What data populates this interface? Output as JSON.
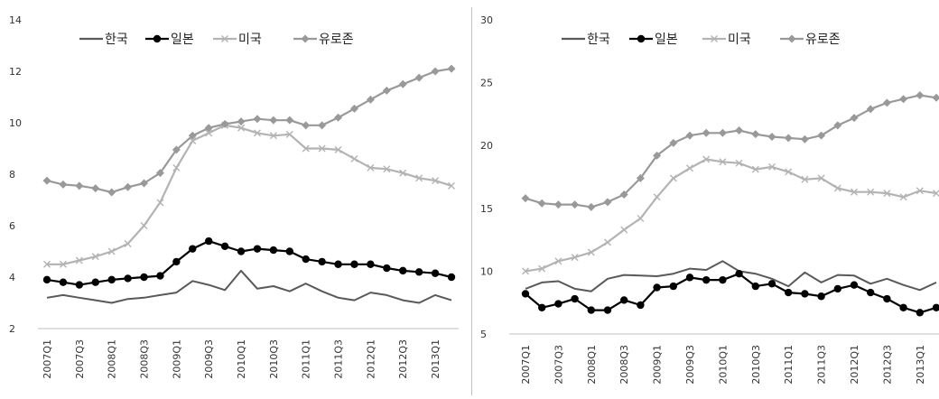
{
  "chart_data": [
    {
      "type": "line",
      "title": "",
      "xlabel": "",
      "ylabel": "",
      "ylim": [
        2,
        14
      ],
      "yticks": [
        2,
        4,
        6,
        8,
        10,
        12,
        14
      ],
      "grid": false,
      "legend_position": "top",
      "categories": [
        "2007Q1",
        "2007Q2",
        "2007Q3",
        "2007Q4",
        "2008Q1",
        "2008Q2",
        "2008Q3",
        "2008Q4",
        "2009Q1",
        "2009Q2",
        "2009Q3",
        "2009Q4",
        "2010Q1",
        "2010Q2",
        "2010Q3",
        "2010Q4",
        "2011Q1",
        "2011Q2",
        "2011Q3",
        "2011Q4",
        "2012Q1",
        "2012Q2",
        "2012Q3",
        "2012Q4",
        "2013Q1",
        "2013Q2"
      ],
      "xtick_labels": [
        "2007Q1",
        "",
        "2007Q3",
        "",
        "2008Q1",
        "",
        "2008Q3",
        "",
        "2009Q1",
        "",
        "2009Q3",
        "",
        "2010Q1",
        "",
        "2010Q3",
        "",
        "2011Q1",
        "",
        "2011Q3",
        "",
        "2012Q1",
        "",
        "2012Q3",
        "",
        "2013Q1",
        ""
      ],
      "series": [
        {
          "name": "한국",
          "color": "#595959",
          "marker": "none",
          "values": [
            3.2,
            3.3,
            3.2,
            3.1,
            3.0,
            3.15,
            3.2,
            3.3,
            3.4,
            3.85,
            3.7,
            3.5,
            4.25,
            3.55,
            3.65,
            3.45,
            3.75,
            3.45,
            3.2,
            3.1,
            3.4,
            3.3,
            3.1,
            3.0,
            3.3,
            3.1
          ]
        },
        {
          "name": "일본",
          "color": "#000000",
          "marker": "circle",
          "values": [
            3.9,
            3.8,
            3.7,
            3.8,
            3.9,
            3.95,
            4.0,
            4.05,
            4.6,
            5.1,
            5.4,
            5.2,
            5.0,
            5.1,
            5.05,
            5.0,
            4.7,
            4.6,
            4.5,
            4.5,
            4.5,
            4.35,
            4.25,
            4.2,
            4.15,
            4.0
          ]
        },
        {
          "name": "미국",
          "color": "#b3b3b3",
          "marker": "x",
          "values": [
            4.5,
            4.5,
            4.65,
            4.8,
            5.0,
            5.3,
            6.0,
            6.9,
            8.25,
            9.3,
            9.6,
            9.9,
            9.8,
            9.6,
            9.5,
            9.55,
            9.0,
            9.0,
            8.95,
            8.6,
            8.25,
            8.2,
            8.05,
            7.85,
            7.75,
            7.55
          ]
        },
        {
          "name": "유로존",
          "color": "#999999",
          "marker": "diamond",
          "values": [
            7.75,
            7.6,
            7.55,
            7.45,
            7.3,
            7.5,
            7.65,
            8.05,
            8.95,
            9.5,
            9.8,
            9.95,
            10.05,
            10.15,
            10.1,
            10.1,
            9.9,
            9.9,
            10.2,
            10.55,
            10.9,
            11.25,
            11.5,
            11.75,
            12.0,
            12.1
          ]
        }
      ]
    },
    {
      "type": "line",
      "title": "",
      "xlabel": "",
      "ylabel": "",
      "ylim": [
        5,
        30
      ],
      "yticks": [
        5,
        10,
        15,
        20,
        25,
        30
      ],
      "grid": false,
      "legend_position": "top",
      "categories": [
        "2007Q1",
        "2007Q2",
        "2007Q3",
        "2007Q4",
        "2008Q1",
        "2008Q2",
        "2008Q3",
        "2008Q4",
        "2009Q1",
        "2009Q2",
        "2009Q3",
        "2009Q4",
        "2010Q1",
        "2010Q2",
        "2010Q3",
        "2010Q4",
        "2011Q1",
        "2011Q2",
        "2011Q3",
        "2011Q4",
        "2012Q1",
        "2012Q2",
        "2012Q3",
        "2012Q4",
        "2013Q1",
        "2013Q2"
      ],
      "xtick_labels": [
        "2007Q1",
        "",
        "2007Q3",
        "",
        "2008Q1",
        "",
        "2008Q3",
        "",
        "2009Q1",
        "",
        "2009Q3",
        "",
        "2010Q1",
        "",
        "2010Q3",
        "",
        "2011Q1",
        "",
        "2011Q3",
        "",
        "2012Q1",
        "",
        "2012Q3",
        "",
        "2013Q1",
        ""
      ],
      "series": [
        {
          "name": "한국",
          "color": "#595959",
          "marker": "none",
          "values": [
            8.6,
            9.1,
            9.2,
            8.6,
            8.4,
            9.4,
            9.7,
            9.65,
            9.6,
            9.8,
            10.2,
            10.1,
            10.8,
            10.0,
            9.8,
            9.4,
            8.8,
            9.9,
            9.1,
            9.7,
            9.65,
            9.0,
            9.4,
            8.9,
            8.5,
            9.1
          ]
        },
        {
          "name": "일본",
          "color": "#000000",
          "marker": "circle",
          "values": [
            8.2,
            7.1,
            7.4,
            7.8,
            6.9,
            6.9,
            7.7,
            7.3,
            8.7,
            8.8,
            9.5,
            9.3,
            9.3,
            9.8,
            8.8,
            9.0,
            8.3,
            8.2,
            8.0,
            8.6,
            8.9,
            8.3,
            7.8,
            7.1,
            6.7,
            7.1
          ]
        },
        {
          "name": "미국",
          "color": "#b3b3b3",
          "marker": "x",
          "values": [
            10.0,
            10.2,
            10.8,
            11.1,
            11.5,
            12.3,
            13.3,
            14.2,
            15.9,
            17.4,
            18.2,
            18.9,
            18.7,
            18.6,
            18.1,
            18.3,
            17.9,
            17.3,
            17.4,
            16.6,
            16.3,
            16.3,
            16.2,
            15.9,
            16.4,
            16.2
          ]
        },
        {
          "name": "유로존",
          "color": "#999999",
          "marker": "diamond",
          "values": [
            15.8,
            15.4,
            15.3,
            15.3,
            15.1,
            15.5,
            16.1,
            17.4,
            19.2,
            20.2,
            20.8,
            21.0,
            21.0,
            21.2,
            20.9,
            20.7,
            20.6,
            20.5,
            20.8,
            21.6,
            22.2,
            22.9,
            23.4,
            23.7,
            24.0,
            23.8
          ]
        }
      ]
    }
  ]
}
